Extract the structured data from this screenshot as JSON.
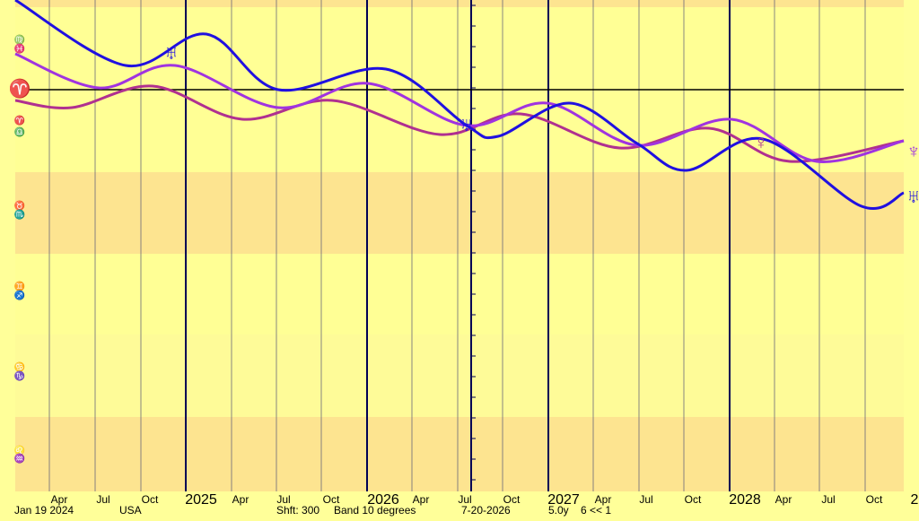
{
  "x_axis": {
    "labels": [
      "Apr",
      "Jul",
      "Oct",
      "2025",
      "Apr",
      "Jul",
      "Oct",
      "2026",
      "Apr",
      "Jul",
      "Oct",
      "2027",
      "Apr",
      "Jul",
      "Oct",
      "2028",
      "Apr",
      "Jul",
      "Oct",
      "2"
    ]
  },
  "footer": [
    "Jan 19  2024",
    "USA",
    "Shft: 300",
    "Band 10 degrees",
    "7-20-2026",
    "5.0y",
    "6 << 1"
  ],
  "signs": [
    "♍",
    "♓",
    "♈",
    "♈",
    "♎",
    "♉",
    "♏",
    "♊",
    "♐",
    "♋",
    "♑",
    "♌",
    "♒"
  ],
  "planets": [
    "♅",
    "♅",
    "♀",
    "♆",
    "♅"
  ]
}
